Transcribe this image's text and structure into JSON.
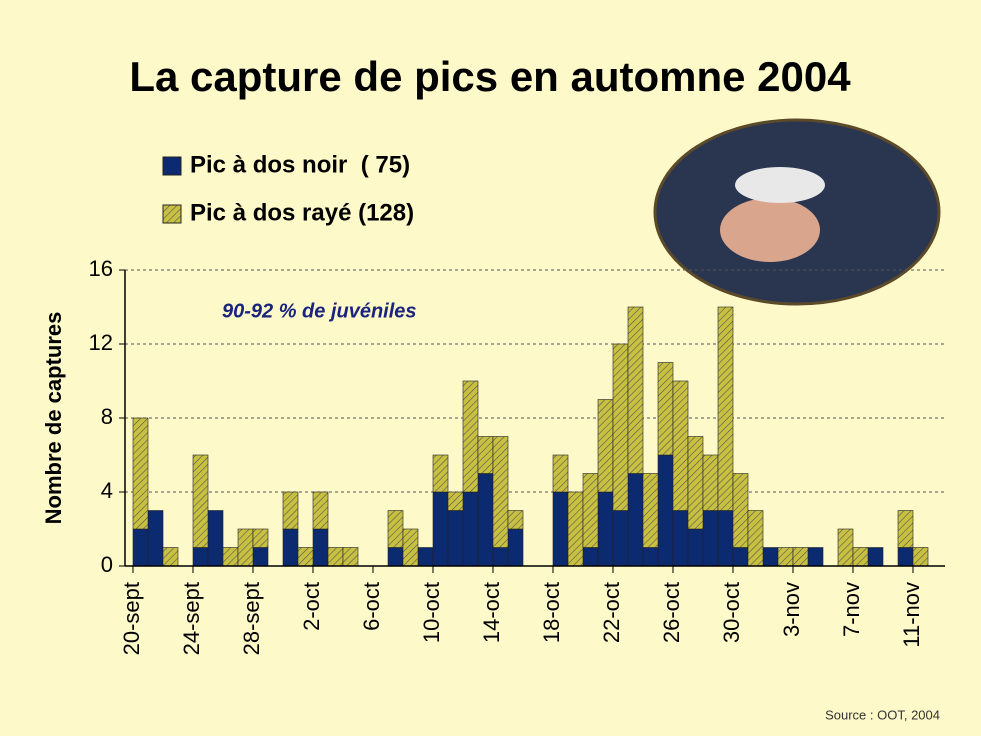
{
  "chart_data": {
    "type": "stacked-bar",
    "title": "La capture de pics en automne 2004",
    "y_label": "Nombre de captures",
    "annotation": "90-92 % de juvéniles",
    "source": "Source : OOT, 2004",
    "categories": [
      "20-sept",
      null,
      null,
      null,
      "24-sept",
      null,
      null,
      null,
      "28-sept",
      null,
      null,
      null,
      "2-oct",
      null,
      null,
      null,
      "6-oct",
      null,
      null,
      null,
      "10-oct",
      null,
      null,
      null,
      "14-oct",
      null,
      null,
      null,
      "18-oct",
      null,
      null,
      null,
      "22-oct",
      null,
      null,
      null,
      "26-oct",
      null,
      null,
      null,
      "30-oct",
      null,
      null,
      null,
      "3-nov",
      null,
      null,
      null,
      "7-nov",
      null,
      null,
      null,
      "11-nov"
    ],
    "series": [
      {
        "name": "Pic à dos noir  ( 75)",
        "color": "#0b2a6f",
        "values": [
          2,
          3,
          0,
          0,
          1,
          3,
          0,
          0,
          1,
          0,
          2,
          0,
          2,
          0,
          0,
          0,
          0,
          1,
          0,
          1,
          4,
          3,
          4,
          5,
          1,
          2,
          0,
          0,
          4,
          0,
          1,
          4,
          3,
          5,
          1,
          6,
          3,
          2,
          3,
          3,
          1,
          0,
          1,
          0,
          0,
          1,
          0,
          0,
          0,
          1,
          0,
          1,
          0
        ]
      },
      {
        "name": "Pic à dos rayé (128)",
        "color": "#c8c040",
        "hatch": true,
        "values": [
          6,
          0,
          1,
          0,
          5,
          0,
          1,
          2,
          1,
          0,
          2,
          1,
          2,
          1,
          1,
          0,
          0,
          2,
          2,
          0,
          2,
          1,
          6,
          2,
          6,
          1,
          0,
          0,
          2,
          4,
          4,
          5,
          9,
          9,
          4,
          5,
          7,
          5,
          3,
          11,
          4,
          3,
          0,
          1,
          1,
          0,
          0,
          2,
          1,
          0,
          0,
          2,
          1
        ]
      }
    ],
    "ylim": [
      0,
      16
    ],
    "yticks": [
      0,
      4,
      8,
      12,
      16
    ],
    "grid": true
  }
}
